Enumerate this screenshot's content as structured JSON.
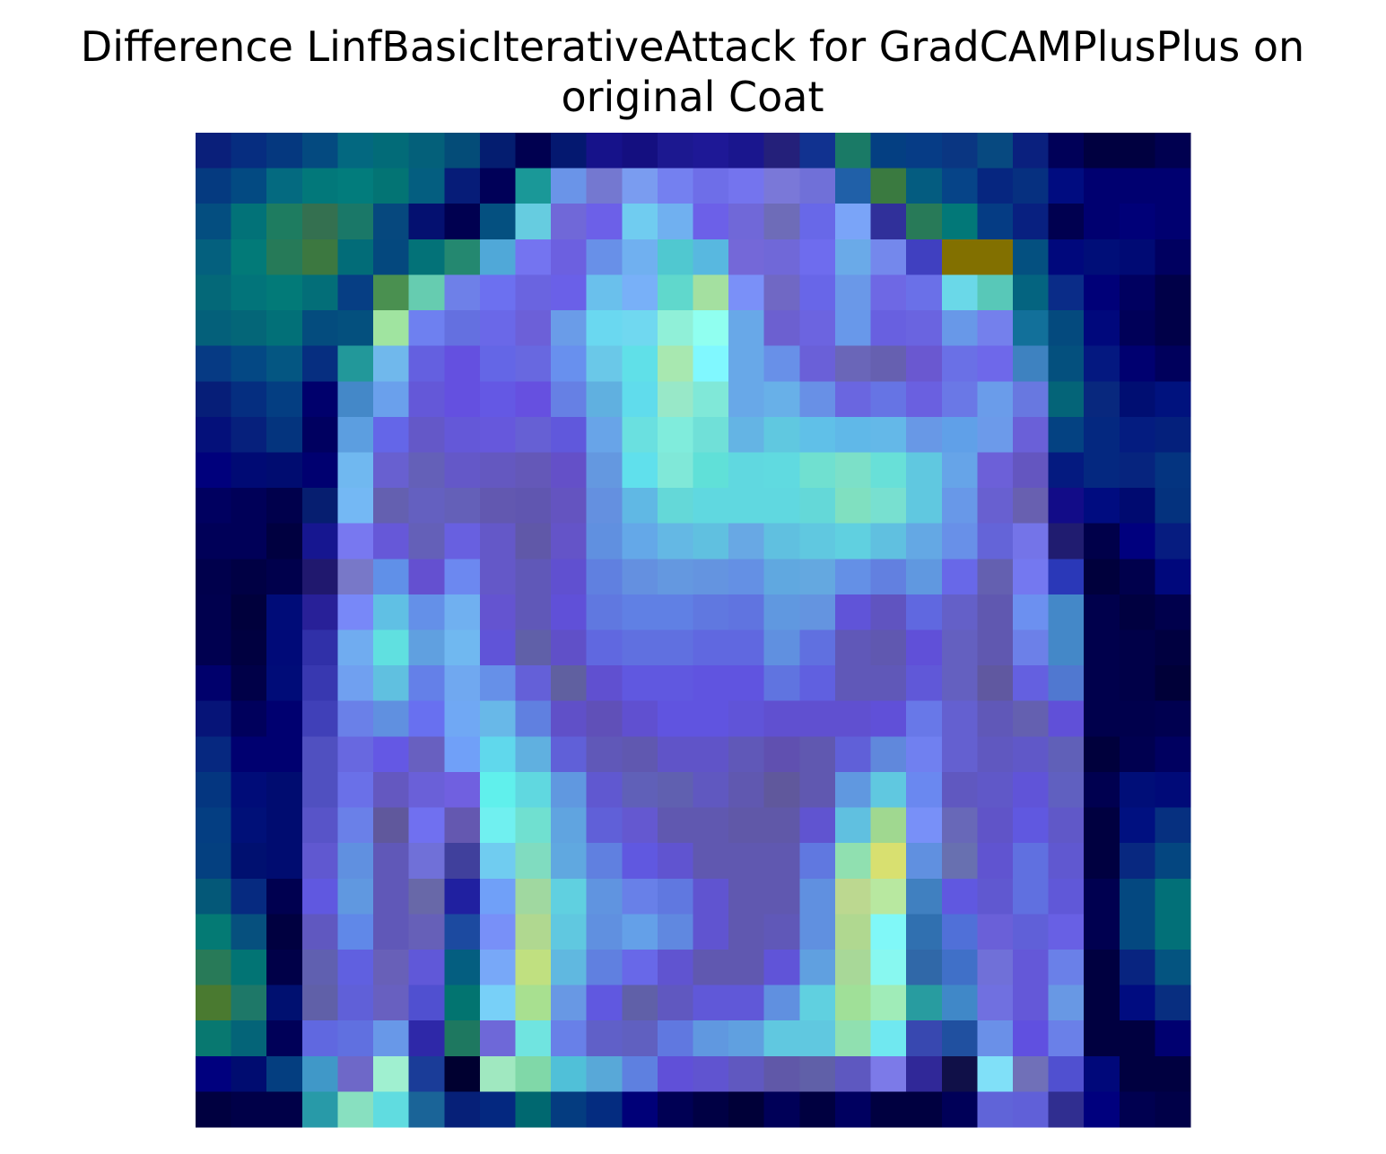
{
  "chart_data": {
    "type": "image",
    "title": [
      "Difference LinfBasicIterativeAttack for GradCAMPlusPlus on",
      "original Coat"
    ],
    "pixels": [
      [
        "#0a1f7a",
        "#062d80",
        "#05387f",
        "#044a80",
        "#036880",
        "#026b78",
        "#04607a",
        "#044c78",
        "#041d70",
        "#000050",
        "#041870",
        "#16128a",
        "#140f80",
        "#1c1890",
        "#1e1896",
        "#1a168e",
        "#24207a",
        "#113290",
        "#1a7a66",
        "#043f82",
        "#063c86",
        "#0a3682",
        "#074980",
        "#0a207e",
        "#000058",
        "#000040",
        "#000040",
        "#000050"
      ],
      [
        "#053a80",
        "#034a82",
        "#046a80",
        "#02787a",
        "#027c7c",
        "#037474",
        "#045e80",
        "#061c78",
        "#000058",
        "#1a9898",
        "#6a94e8",
        "#7478d0",
        "#7a9cf0",
        "#7480f0",
        "#6e6ee8",
        "#7474ee",
        "#7a78d8",
        "#7070d8",
        "#2060a8",
        "#3a7a40",
        "#045c80",
        "#064488",
        "#062680",
        "#063080",
        "#000c80",
        "#000070",
        "#000070",
        "#000070"
      ],
      [
        "#044e80",
        "#027278",
        "#1e7c60",
        "#347050",
        "#1a7868",
        "#06487e",
        "#041070",
        "#000050",
        "#045080",
        "#66cce0",
        "#7068d8",
        "#6c60e8",
        "#70ccf0",
        "#70b0f0",
        "#6c60e8",
        "#7068d8",
        "#6e6cb8",
        "#6868e8",
        "#7aa4f8",
        "#30309a",
        "#287a58",
        "#027878",
        "#053c84",
        "#082080",
        "#000050",
        "#000070",
        "#000078",
        "#000070"
      ],
      [
        "#04607e",
        "#027a78",
        "#267a58",
        "#3c7840",
        "#026c78",
        "#04487e",
        "#037278",
        "#248870",
        "#50a8d8",
        "#7474f0",
        "#6c60e0",
        "#6890e8",
        "#70b0f0",
        "#50c8d0",
        "#58b8e0",
        "#7468d8",
        "#7068d8",
        "#6e6cee",
        "#6aaae8",
        "#7488ec",
        "#4040c0",
        "#827000",
        "#827000",
        "#045080",
        "#00087c",
        "#000e78",
        "#000a74",
        "#000060"
      ],
      [
        "#046878",
        "#02747a",
        "#027a78",
        "#036e78",
        "#063e84",
        "#4a9050",
        "#66ccb0",
        "#6e80e8",
        "#6c70f0",
        "#6a64e0",
        "#6a60e8",
        "#6ac0ec",
        "#78b0f8",
        "#60d8cc",
        "#a4e0a0",
        "#7a90f8",
        "#7068c4",
        "#6866e8",
        "#6a98e8",
        "#6e68e4",
        "#6a70e8",
        "#6ad8e8",
        "#58c8b8",
        "#046480",
        "#0a2c88",
        "#000078",
        "#000060",
        "#000048"
      ],
      [
        "#04607a",
        "#046678",
        "#027078",
        "#044c7e",
        "#04507e",
        "#a0e4a0",
        "#6e80f0",
        "#6470e0",
        "#6a68e8",
        "#6c60d8",
        "#6a9ce8",
        "#6ad8f0",
        "#70d8f0",
        "#90f0d8",
        "#90fff0",
        "#68a8e8",
        "#6c60d0",
        "#6c64e0",
        "#6898ea",
        "#6860e0",
        "#6a64e0",
        "#6898e8",
        "#7480ec",
        "#12709a",
        "#044a7e",
        "#00087c",
        "#000058",
        "#000048"
      ],
      [
        "#063a84",
        "#044884",
        "#045682",
        "#062e80",
        "#22989a",
        "#70b8ec",
        "#6460e0",
        "#6450e0",
        "#6466e6",
        "#6868e0",
        "#6890ee",
        "#6ac8e8",
        "#60e0e8",
        "#a8e8b0",
        "#80f8ff",
        "#68a8e8",
        "#6890e8",
        "#6a60d8",
        "#6a66b8",
        "#6660b0",
        "#6a58d0",
        "#6a70e6",
        "#6e68ea",
        "#3e82c0",
        "#04507e",
        "#041880",
        "#000070",
        "#00005c"
      ],
      [
        "#061e78",
        "#052e80",
        "#043e82",
        "#00006c",
        "#4488c8",
        "#6aa0ec",
        "#6458d8",
        "#6450e0",
        "#6458e4",
        "#6650e0",
        "#6680e4",
        "#60b0e0",
        "#60dcec",
        "#98e8c8",
        "#80e8d8",
        "#68a8e8",
        "#68b0e8",
        "#6890e6",
        "#6a66e0",
        "#6674e4",
        "#6a60e0",
        "#6a78e6",
        "#6a9cea",
        "#6878e0",
        "#046478",
        "#08287e",
        "#000e72",
        "#00127e"
      ],
      [
        "#04107a",
        "#06207c",
        "#04347e",
        "#000060",
        "#5c9ee0",
        "#6466e8",
        "#6458c8",
        "#6458d8",
        "#6658dc",
        "#6660d4",
        "#6058dc",
        "#68a4e8",
        "#6ae0e0",
        "#80ecdc",
        "#70e0d8",
        "#64b4e4",
        "#60c8e0",
        "#60c0e8",
        "#60b8e8",
        "#64b8e8",
        "#6898e6",
        "#60a0e8",
        "#6c9aea",
        "#6a60d8",
        "#044282",
        "#042880",
        "#041c80",
        "#04207c"
      ],
      [
        "#00007c",
        "#000a74",
        "#000c70",
        "#000070",
        "#70b8f0",
        "#6860d0",
        "#6460b8",
        "#6458c8",
        "#6458c0",
        "#6458b8",
        "#6450c8",
        "#6498e0",
        "#60e0ec",
        "#80e8d8",
        "#60e0d8",
        "#60d8e0",
        "#60dae0",
        "#70e0d0",
        "#7ce0c8",
        "#68e0d8",
        "#60c8e0",
        "#66a4e8",
        "#6c60d8",
        "#6456c0",
        "#041a80",
        "#042880",
        "#06247e",
        "#043480"
      ],
      [
        "#000060",
        "#000058",
        "#00004c",
        "#061e70",
        "#74b8f4",
        "#6460b0",
        "#6460c0",
        "#6460b8",
        "#6258b0",
        "#6056b0",
        "#6454c0",
        "#6490e0",
        "#60b8e4",
        "#64d8d8",
        "#60d8e0",
        "#60d8e0",
        "#60d8e0",
        "#64d8d8",
        "#80e0c0",
        "#78e0d0",
        "#60c8e0",
        "#6898e8",
        "#6860d0",
        "#6860b0",
        "#120c88",
        "#000c80",
        "#000a70",
        "#04327e"
      ],
      [
        "#000058",
        "#000058",
        "#000040",
        "#161690",
        "#7878f0",
        "#6658d8",
        "#6460b8",
        "#6860e0",
        "#6458c8",
        "#6058a8",
        "#6454c8",
        "#6090e0",
        "#64a8e8",
        "#64b8e4",
        "#60c0e0",
        "#68a8e4",
        "#60c0e0",
        "#60c8e0",
        "#60d0e0",
        "#60c0e0",
        "#64a8e4",
        "#6890e8",
        "#6464d8",
        "#7474e8",
        "#201c70",
        "#00004a",
        "#00007e",
        "#061c80"
      ],
      [
        "#00004c",
        "#000044",
        "#00004c",
        "#20186e",
        "#7878c8",
        "#6090e8",
        "#6450d0",
        "#6c88f0",
        "#6458c8",
        "#6058b8",
        "#6050d0",
        "#6080e0",
        "#6490e0",
        "#6498e0",
        "#6494e0",
        "#6490e4",
        "#60a8e0",
        "#64a8e0",
        "#6490e6",
        "#6280e0",
        "#6098e0",
        "#6868e8",
        "#6460b0",
        "#7478f0",
        "#2a38b8",
        "#00003c",
        "#00004c",
        "#00087c"
      ],
      [
        "#00004e",
        "#00003c",
        "#000c78",
        "#282098",
        "#7888f8",
        "#60c0e4",
        "#6490e8",
        "#70b0f0",
        "#6454d0",
        "#6058b8",
        "#6050d8",
        "#6078e0",
        "#6080e4",
        "#6080e4",
        "#6078e0",
        "#6074e0",
        "#6098e0",
        "#6494e0",
        "#6054d8",
        "#6054c0",
        "#6068e0",
        "#6460c8",
        "#6058b0",
        "#6c90f0",
        "#4488c8",
        "#00004c",
        "#000040",
        "#00004c"
      ],
      [
        "#000050",
        "#000040",
        "#000a78",
        "#3030a8",
        "#70acf0",
        "#60e0e0",
        "#60a0e0",
        "#70b8f0",
        "#6054d8",
        "#6060a8",
        "#6050c8",
        "#6068e0",
        "#6070e0",
        "#6070e0",
        "#6068e0",
        "#6068e0",
        "#6090e0",
        "#6070e0",
        "#6058b8",
        "#6058b0",
        "#6050d8",
        "#6460c0",
        "#6058b0",
        "#6c80e8",
        "#4488c8",
        "#00004c",
        "#000048",
        "#000040"
      ],
      [
        "#00006c",
        "#000048",
        "#000c78",
        "#3838b0",
        "#70a0f0",
        "#60c0e0",
        "#6480e8",
        "#70a8f0",
        "#6690e8",
        "#6460d8",
        "#6060a0",
        "#6050d0",
        "#6058e0",
        "#6058e0",
        "#6054e0",
        "#6054e0",
        "#6074e0",
        "#6060e0",
        "#6058b8",
        "#6058b8",
        "#6058d8",
        "#6460c0",
        "#6058a0",
        "#6460e0",
        "#5078d0",
        "#00004c",
        "#000048",
        "#000038"
      ],
      [
        "#061478",
        "#00005c",
        "#000070",
        "#4040b8",
        "#6a80e8",
        "#6090e0",
        "#6870f0",
        "#70a8f4",
        "#68b8e8",
        "#6080e0",
        "#6050c8",
        "#6050b8",
        "#6050d0",
        "#6054e0",
        "#6054e0",
        "#6054d8",
        "#6050d0",
        "#6050d0",
        "#6050d0",
        "#6050d8",
        "#6878e8",
        "#6460d0",
        "#6058b8",
        "#6460b0",
        "#6050d8",
        "#00004c",
        "#00004c",
        "#000050"
      ],
      [
        "#062880",
        "#000070",
        "#000070",
        "#5050c0",
        "#6868e0",
        "#6458e4",
        "#6860c0",
        "#70a0f8",
        "#60d8ec",
        "#60b0e0",
        "#6060d8",
        "#6058b8",
        "#6058b0",
        "#6054c8",
        "#6054c8",
        "#6058b8",
        "#6050b0",
        "#6058b0",
        "#6060d8",
        "#6088dc",
        "#7080f0",
        "#6460d0",
        "#6058c0",
        "#6058c8",
        "#6060b8",
        "#00003c",
        "#000050",
        "#000060"
      ],
      [
        "#043680",
        "#000c78",
        "#000c70",
        "#5050c0",
        "#6a70e8",
        "#6458c0",
        "#6a60d8",
        "#7060e0",
        "#60f0ec",
        "#60d8e0",
        "#6098e0",
        "#6058d0",
        "#6060b8",
        "#6060b0",
        "#6058c0",
        "#6058b0",
        "#60589c",
        "#6058b0",
        "#6098e0",
        "#60c8e0",
        "#6a88f0",
        "#6058c0",
        "#6058c8",
        "#6054d8",
        "#6060c0",
        "#000050",
        "#000e78",
        "#000a78"
      ],
      [
        "#043e82",
        "#001078",
        "#000c70",
        "#5854c8",
        "#6a80e8",
        "#60589c",
        "#7070f0",
        "#6458b0",
        "#70f0f0",
        "#70e0d0",
        "#60a4e0",
        "#6060d8",
        "#6458d0",
        "#6058b0",
        "#6058b0",
        "#6058a8",
        "#6058a8",
        "#6054d0",
        "#60c0e0",
        "#a0d890",
        "#7890f8",
        "#6868b8",
        "#6054c8",
        "#6058e0",
        "#6058c8",
        "#000040",
        "#001080",
        "#063080"
      ],
      [
        "#044080",
        "#001070",
        "#000c70",
        "#6058d0",
        "#6090e0",
        "#6058b8",
        "#7070d8",
        "#40409c",
        "#70ccf0",
        "#80dcc0",
        "#60a8e0",
        "#6080e0",
        "#6058e0",
        "#6054d0",
        "#6058b0",
        "#6058b0",
        "#6058b0",
        "#6078e0",
        "#90e0b0",
        "#d8e070",
        "#6090e0",
        "#6870b0",
        "#6054d0",
        "#6070e0",
        "#6058d0",
        "#000040",
        "#082880",
        "#044680"
      ],
      [
        "#045878",
        "#062a80",
        "#000050",
        "#6058e0",
        "#6098e0",
        "#6058b8",
        "#6868a8",
        "#2020a0",
        "#70a0f8",
        "#a0d8a0",
        "#60d0e0",
        "#6094e0",
        "#6880e8",
        "#6078e0",
        "#6054d0",
        "#6058b0",
        "#6058b0",
        "#6090e0",
        "#bcd890",
        "#b8e8a0",
        "#4080c0",
        "#6058e0",
        "#6058d0",
        "#6070e0",
        "#6058d8",
        "#000050",
        "#044880",
        "#027078"
      ],
      [
        "#047a74",
        "#06507e",
        "#000040",
        "#6058c0",
        "#6088e8",
        "#6058b8",
        "#6660b8",
        "#1c4aa0",
        "#7890f8",
        "#b0d890",
        "#60c8e0",
        "#6090e0",
        "#64a0e8",
        "#6088e0",
        "#6054d0",
        "#6058b0",
        "#6058b8",
        "#6090e0",
        "#b0d890",
        "#80f8f8",
        "#3070b0",
        "#5070d8",
        "#6a60d8",
        "#6060d8",
        "#6860e4",
        "#000050",
        "#044880",
        "#027078"
      ],
      [
        "#287a58",
        "#027474",
        "#000048",
        "#6060b0",
        "#6060e0",
        "#6860b8",
        "#6058d8",
        "#045e80",
        "#78a8f8",
        "#c0e080",
        "#60b8e0",
        "#6080e0",
        "#6868e8",
        "#6054d0",
        "#6058b0",
        "#6058b0",
        "#6054d8",
        "#60a0e0",
        "#a8d898",
        "#88f8f0",
        "#3068a8",
        "#4070c8",
        "#7070d8",
        "#6458d8",
        "#6a80e8",
        "#000040",
        "#082480",
        "#045480"
      ],
      [
        "#4a7a30",
        "#1e7868",
        "#001070",
        "#6060a8",
        "#6060d8",
        "#6860c0",
        "#5050d0",
        "#027470",
        "#78d0f8",
        "#a8e090",
        "#6898e4",
        "#6058e0",
        "#6060a8",
        "#6058c0",
        "#6058d8",
        "#6058d8",
        "#6090e0",
        "#60d0e0",
        "#a0e098",
        "#a0ecb8",
        "#289ca0",
        "#4088c8",
        "#7070e0",
        "#6458d8",
        "#6898e4",
        "#000040",
        "#000c80",
        "#082e80"
      ],
      [
        "#087870",
        "#046478",
        "#000058",
        "#6068e0",
        "#6070e0",
        "#6898e8",
        "#2e28a8",
        "#1e7860",
        "#6e68d8",
        "#70e4e0",
        "#6880e8",
        "#6060c8",
        "#6060c0",
        "#6078e0",
        "#6098e0",
        "#60a0e0",
        "#60c8e0",
        "#60c8e0",
        "#90e0b0",
        "#70e8f0",
        "#3848b0",
        "#2050a0",
        "#6a90e8",
        "#6050e0",
        "#6a80e8",
        "#000040",
        "#000040",
        "#000070"
      ],
      [
        "#00007e",
        "#000c70",
        "#043e80",
        "#4098c8",
        "#6e68c8",
        "#a0f0d0",
        "#1a3c98",
        "#000030",
        "#a0e8c0",
        "#80d8a8",
        "#50c0d8",
        "#58a8d8",
        "#5e80e0",
        "#6050d8",
        "#6054d0",
        "#6058c0",
        "#6058a8",
        "#6060a8",
        "#5e58c0",
        "#7c7ae8",
        "#302898",
        "#101048",
        "#80e0f8",
        "#7070b8",
        "#5050d0",
        "#00087a",
        "#000040",
        "#000040"
      ],
      [
        "#000040",
        "#000048",
        "#000048",
        "#289aa8",
        "#88e0c0",
        "#60dce0",
        "#1a6498",
        "#062078",
        "#042880",
        "#006870",
        "#043c80",
        "#042c80",
        "#000078",
        "#000054",
        "#000044",
        "#000038",
        "#000058",
        "#000040",
        "#000060",
        "#000040",
        "#000040",
        "#000058",
        "#6064d8",
        "#6060d8",
        "#302e90",
        "#00007e",
        "#000050",
        "#000048"
      ]
    ]
  }
}
